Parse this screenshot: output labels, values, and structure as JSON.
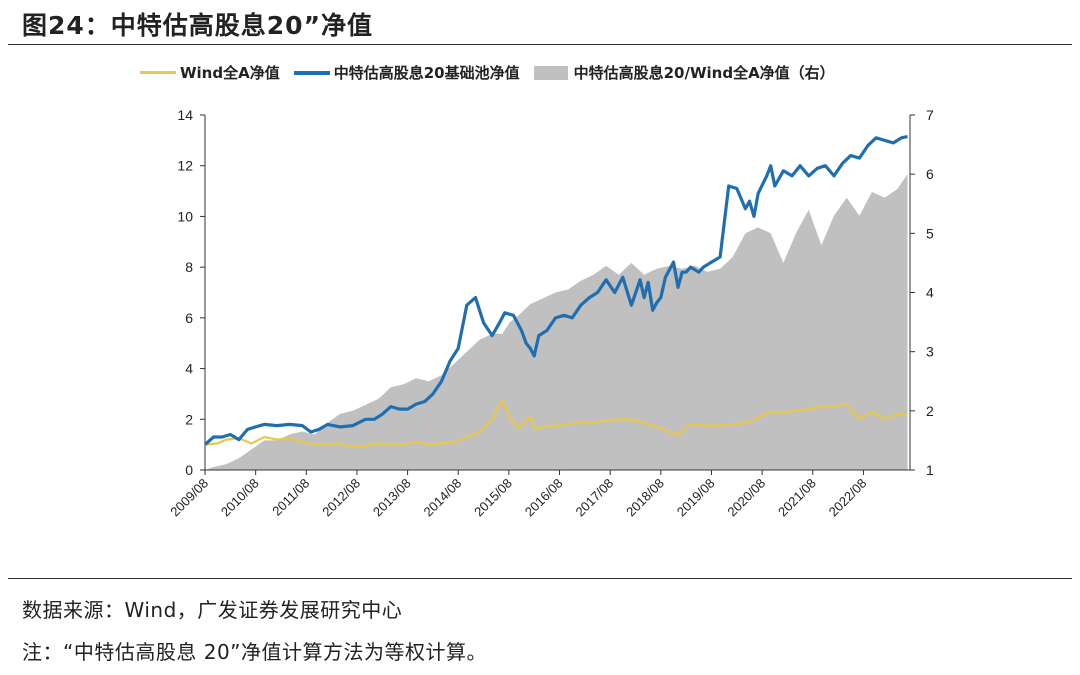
{
  "title": "图24：中特估高股息20”净值",
  "legend": {
    "wind_all_a": "Wind全A净值",
    "pool": "中特估高股息20基础池净值",
    "ratio": "中特估高股息20/Wind全A净值（右）"
  },
  "colors": {
    "wind_all_a": "#E8C84A",
    "pool": "#1F6FB0",
    "ratio": "#C0C0C0"
  },
  "notes": {
    "source": "数据来源：Wind，广发证券发展研究中心",
    "note": "注：“中特估高股息 20”净值计算方法为等权计算。"
  },
  "chart_data": {
    "type": "line",
    "x_tick_labels": [
      "2009/08",
      "2010/08",
      "2011/08",
      "2012/08",
      "2013/08",
      "2014/08",
      "2015/08",
      "2016/08",
      "2017/08",
      "2018/08",
      "2019/08",
      "2020/08",
      "2021/08",
      "2022/08"
    ],
    "y_left": {
      "range": [
        0,
        14
      ],
      "ticks": [
        0,
        2,
        4,
        6,
        8,
        10,
        12,
        14
      ]
    },
    "y_right": {
      "range": [
        1,
        7
      ],
      "ticks": [
        1,
        2,
        3,
        4,
        5,
        6,
        7
      ]
    },
    "series": [
      {
        "name": "Wind全A净值",
        "axis": "left",
        "style": "line",
        "x": [
          2009.58,
          2009.83,
          2010.0,
          2010.25,
          2010.5,
          2010.75,
          2011.0,
          2011.25,
          2011.5,
          2011.75,
          2012.0,
          2012.25,
          2012.5,
          2012.75,
          2013.0,
          2013.25,
          2013.5,
          2013.75,
          2014.0,
          2014.25,
          2014.5,
          2014.75,
          2015.0,
          2015.25,
          2015.45,
          2015.6,
          2015.75,
          2016.0,
          2016.1,
          2016.25,
          2016.5,
          2016.75,
          2017.0,
          2017.25,
          2017.5,
          2017.75,
          2018.0,
          2018.25,
          2018.5,
          2018.75,
          2018.95,
          2019.1,
          2019.25,
          2019.5,
          2019.75,
          2020.0,
          2020.25,
          2020.5,
          2020.75,
          2021.0,
          2021.25,
          2021.5,
          2021.75,
          2022.0,
          2022.25,
          2022.5,
          2022.75,
          2023.0,
          2023.25,
          2023.45
        ],
        "y": [
          1.0,
          1.05,
          1.2,
          1.25,
          1.05,
          1.3,
          1.2,
          1.25,
          1.1,
          1.0,
          1.0,
          1.05,
          0.9,
          0.95,
          1.05,
          1.0,
          1.0,
          1.1,
          1.0,
          1.05,
          1.1,
          1.3,
          1.5,
          2.0,
          2.75,
          2.1,
          1.65,
          2.1,
          1.6,
          1.7,
          1.75,
          1.8,
          1.9,
          1.85,
          1.95,
          2.0,
          2.0,
          1.85,
          1.7,
          1.5,
          1.4,
          1.75,
          1.8,
          1.75,
          1.75,
          1.8,
          1.85,
          2.05,
          2.3,
          2.25,
          2.35,
          2.4,
          2.5,
          2.5,
          2.6,
          2.0,
          2.3,
          2.0,
          2.2,
          2.15
        ]
      },
      {
        "name": "中特估高股息20基础池净值",
        "axis": "left",
        "style": "line",
        "x": [
          2009.58,
          2009.75,
          2009.92,
          2010.08,
          2010.25,
          2010.42,
          2010.58,
          2010.75,
          2011.0,
          2011.25,
          2011.5,
          2011.67,
          2011.83,
          2012.0,
          2012.25,
          2012.5,
          2012.75,
          2012.92,
          2013.08,
          2013.25,
          2013.42,
          2013.58,
          2013.75,
          2013.92,
          2014.08,
          2014.25,
          2014.42,
          2014.58,
          2014.75,
          2014.92,
          2015.08,
          2015.25,
          2015.42,
          2015.5,
          2015.67,
          2015.83,
          2015.92,
          2016.0,
          2016.08,
          2016.17,
          2016.33,
          2016.5,
          2016.67,
          2016.83,
          2017.0,
          2017.17,
          2017.33,
          2017.5,
          2017.67,
          2017.83,
          2018.0,
          2018.17,
          2018.25,
          2018.33,
          2018.42,
          2018.5,
          2018.58,
          2018.67,
          2018.83,
          2018.92,
          2019.0,
          2019.08,
          2019.17,
          2019.25,
          2019.33,
          2019.42,
          2019.58,
          2019.75,
          2019.92,
          2020.08,
          2020.25,
          2020.33,
          2020.42,
          2020.5,
          2020.67,
          2020.75,
          2020.83,
          2021.0,
          2021.17,
          2021.33,
          2021.5,
          2021.67,
          2021.83,
          2022.0,
          2022.17,
          2022.33,
          2022.5,
          2022.67,
          2022.83,
          2023.0,
          2023.17,
          2023.33,
          2023.45
        ],
        "y": [
          1.0,
          1.3,
          1.3,
          1.4,
          1.2,
          1.6,
          1.7,
          1.8,
          1.75,
          1.8,
          1.75,
          1.5,
          1.6,
          1.8,
          1.7,
          1.75,
          2.0,
          2.0,
          2.2,
          2.5,
          2.4,
          2.4,
          2.6,
          2.7,
          3.0,
          3.5,
          4.3,
          4.8,
          6.5,
          6.8,
          5.8,
          5.3,
          5.9,
          6.2,
          6.1,
          5.5,
          5.0,
          4.8,
          4.5,
          5.3,
          5.5,
          6.0,
          6.1,
          6.0,
          6.5,
          6.8,
          7.0,
          7.5,
          7.0,
          7.6,
          6.5,
          7.5,
          6.8,
          7.4,
          6.3,
          6.6,
          6.8,
          7.6,
          8.2,
          7.2,
          7.8,
          7.8,
          8.0,
          7.9,
          7.8,
          8.0,
          8.2,
          8.4,
          11.2,
          11.1,
          10.3,
          10.6,
          10.0,
          10.9,
          11.6,
          12.0,
          11.2,
          11.8,
          11.6,
          12.0,
          11.6,
          11.9,
          12.0,
          11.6,
          12.1,
          12.4,
          12.3,
          12.8,
          13.1,
          13.0,
          12.9,
          13.1,
          13.15
        ]
      },
      {
        "name": "中特估高股息20/Wind全A净值（右）",
        "axis": "right",
        "style": "area",
        "x": [
          2009.58,
          2009.75,
          2010.0,
          2010.25,
          2010.5,
          2010.75,
          2011.0,
          2011.25,
          2011.5,
          2011.75,
          2012.0,
          2012.25,
          2012.5,
          2012.75,
          2013.0,
          2013.25,
          2013.5,
          2013.75,
          2014.0,
          2014.25,
          2014.5,
          2014.75,
          2015.0,
          2015.25,
          2015.45,
          2015.6,
          2015.75,
          2016.0,
          2016.25,
          2016.5,
          2016.75,
          2017.0,
          2017.25,
          2017.5,
          2017.75,
          2018.0,
          2018.25,
          2018.5,
          2018.75,
          2019.0,
          2019.25,
          2019.5,
          2019.75,
          2020.0,
          2020.25,
          2020.5,
          2020.75,
          2021.0,
          2021.25,
          2021.5,
          2021.75,
          2022.0,
          2022.25,
          2022.5,
          2022.75,
          2023.0,
          2023.25,
          2023.45
        ],
        "y": [
          1.0,
          1.05,
          1.1,
          1.2,
          1.35,
          1.5,
          1.5,
          1.6,
          1.65,
          1.6,
          1.8,
          1.95,
          2.0,
          2.1,
          2.2,
          2.4,
          2.45,
          2.55,
          2.5,
          2.6,
          2.8,
          3.0,
          3.2,
          3.3,
          3.3,
          3.5,
          3.6,
          3.8,
          3.9,
          4.0,
          4.05,
          4.2,
          4.3,
          4.45,
          4.3,
          4.5,
          4.3,
          4.4,
          4.45,
          4.4,
          4.45,
          4.35,
          4.4,
          4.6,
          5.0,
          5.1,
          5.0,
          4.5,
          5.0,
          5.4,
          4.8,
          5.3,
          5.6,
          5.3,
          5.7,
          5.6,
          5.75,
          6.0
        ]
      }
    ]
  }
}
